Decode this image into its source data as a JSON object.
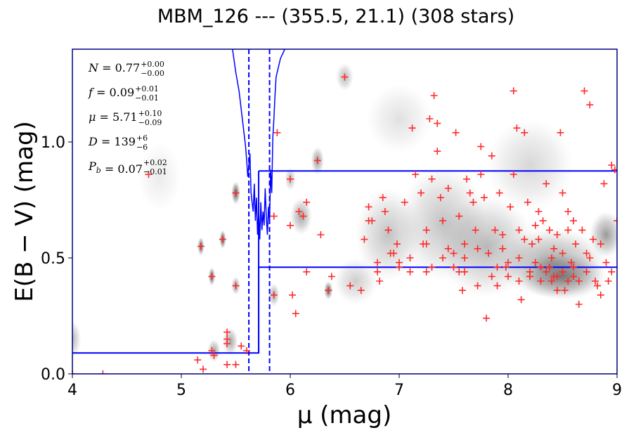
{
  "chart_data": {
    "type": "scatter",
    "title": "MBM_126 --- (355.5, 21.1) (308 stars)",
    "xlabel": "μ (mag)",
    "ylabel": "E(B − V) (mag)",
    "xlim": [
      4,
      9
    ],
    "ylim": [
      0,
      1.4
    ],
    "xticks": [
      "4",
      "5",
      "6",
      "7",
      "8",
      "9"
    ],
    "yticks": [
      "0.0",
      "0.5",
      "1.0"
    ],
    "xtick_values": [
      4,
      5,
      6,
      7,
      8,
      9
    ],
    "ytick_values": [
      0,
      0.5,
      1.0
    ],
    "annotations": [
      {
        "name": "N",
        "value": "0.77",
        "upper": "+0.00",
        "lower": "−0.00"
      },
      {
        "name": "f",
        "value": "0.09",
        "upper": "+0.01",
        "lower": "−0.01"
      },
      {
        "name": "μ",
        "value": "5.71",
        "upper": "+0.10",
        "lower": "−0.09"
      },
      {
        "name": "D",
        "value": "139",
        "upper": "+6",
        "lower": "−6"
      },
      {
        "name": "P_b",
        "value": "0.07",
        "upper": "+0.02",
        "lower": "−0.01"
      }
    ],
    "colors": {
      "stars": "#ff2a2a",
      "model": "#0000ff",
      "density": "#333333"
    },
    "model_step": {
      "x": [
        4,
        5.71,
        5.71,
        9
      ],
      "y": [
        0.09,
        0.09,
        0.46,
        0.46
      ]
    },
    "model_upper": {
      "x": [
        5.71,
        9
      ],
      "y": [
        0.875,
        0.875
      ]
    },
    "mu_bounds": [
      5.62,
      5.81
    ],
    "likelihood_curve": {
      "x": [
        5.47,
        5.5,
        5.53,
        5.56,
        5.59,
        5.6,
        5.61,
        5.63,
        5.64,
        5.66,
        5.67,
        5.68,
        5.69,
        5.7,
        5.71,
        5.72,
        5.73,
        5.74,
        5.75,
        5.76,
        5.77,
        5.78,
        5.79,
        5.8,
        5.81,
        5.82,
        5.83,
        5.84,
        5.85,
        5.86,
        5.87,
        5.89,
        5.91,
        5.93,
        5.95
      ],
      "y": [
        1.4,
        1.3,
        1.22,
        1.1,
        0.98,
        0.92,
        0.85,
        0.95,
        0.78,
        0.7,
        0.82,
        0.66,
        0.76,
        0.6,
        0.7,
        0.58,
        0.74,
        0.62,
        0.7,
        0.64,
        0.8,
        0.68,
        0.6,
        0.72,
        0.65,
        0.88,
        0.78,
        1.02,
        1.1,
        1.2,
        1.28,
        1.32,
        1.36,
        1.38,
        1.4
      ]
    },
    "series": [
      {
        "name": "stars",
        "points": [
          [
            4.0,
            0.0
          ],
          [
            4.28,
            0.0
          ],
          [
            4.7,
            0.86
          ],
          [
            5.18,
            0.55
          ],
          [
            5.15,
            0.06
          ],
          [
            5.2,
            0.02
          ],
          [
            5.28,
            0.42
          ],
          [
            5.28,
            0.1
          ],
          [
            5.3,
            0.08
          ],
          [
            5.38,
            0.58
          ],
          [
            5.42,
            0.18
          ],
          [
            5.42,
            0.15
          ],
          [
            5.42,
            0.13
          ],
          [
            5.42,
            0.04
          ],
          [
            5.5,
            0.38
          ],
          [
            5.5,
            0.04
          ],
          [
            5.5,
            0.78
          ],
          [
            5.55,
            0.12
          ],
          [
            5.6,
            0.1
          ],
          [
            5.85,
            0.68
          ],
          [
            5.85,
            0.34
          ],
          [
            5.88,
            1.04
          ],
          [
            6.0,
            0.84
          ],
          [
            6.0,
            0.64
          ],
          [
            6.02,
            0.34
          ],
          [
            6.05,
            0.26
          ],
          [
            6.08,
            0.7
          ],
          [
            6.12,
            0.68
          ],
          [
            6.15,
            0.74
          ],
          [
            6.15,
            0.44
          ],
          [
            6.25,
            0.92
          ],
          [
            6.28,
            0.6
          ],
          [
            6.35,
            0.36
          ],
          [
            6.38,
            0.42
          ],
          [
            6.5,
            1.28
          ],
          [
            6.55,
            0.38
          ],
          [
            6.65,
            0.36
          ],
          [
            6.68,
            0.58
          ],
          [
            6.72,
            0.72
          ],
          [
            6.72,
            0.66
          ],
          [
            6.75,
            0.66
          ],
          [
            6.8,
            0.48
          ],
          [
            6.8,
            0.44
          ],
          [
            6.82,
            0.4
          ],
          [
            6.85,
            0.76
          ],
          [
            6.87,
            0.7
          ],
          [
            6.9,
            0.62
          ],
          [
            6.92,
            0.52
          ],
          [
            6.95,
            0.52
          ],
          [
            7.0,
            0.48
          ],
          [
            7.0,
            0.46
          ],
          [
            7.05,
            0.74
          ],
          [
            7.1,
            0.5
          ],
          [
            7.12,
            1.06
          ],
          [
            7.15,
            0.86
          ],
          [
            7.2,
            0.78
          ],
          [
            7.22,
            0.56
          ],
          [
            7.25,
            0.62
          ],
          [
            7.25,
            0.56
          ],
          [
            7.25,
            0.44
          ],
          [
            7.28,
            1.1
          ],
          [
            7.3,
            0.84
          ],
          [
            7.32,
            1.2
          ],
          [
            7.35,
            1.08
          ],
          [
            7.35,
            0.96
          ],
          [
            7.38,
            0.76
          ],
          [
            7.4,
            0.66
          ],
          [
            7.4,
            0.5
          ],
          [
            7.45,
            0.8
          ],
          [
            7.5,
            0.52
          ],
          [
            7.5,
            0.46
          ],
          [
            7.52,
            1.04
          ],
          [
            7.55,
            0.68
          ],
          [
            7.55,
            0.44
          ],
          [
            7.58,
            0.36
          ],
          [
            7.6,
            0.56
          ],
          [
            7.6,
            0.44
          ],
          [
            7.62,
            0.84
          ],
          [
            7.65,
            0.78
          ],
          [
            7.68,
            0.74
          ],
          [
            7.7,
            0.62
          ],
          [
            7.72,
            0.54
          ],
          [
            7.72,
            0.38
          ],
          [
            7.75,
            0.98
          ],
          [
            7.75,
            0.86
          ],
          [
            7.78,
            0.76
          ],
          [
            7.8,
            0.24
          ],
          [
            7.82,
            0.52
          ],
          [
            7.85,
            0.94
          ],
          [
            7.85,
            0.42
          ],
          [
            7.88,
            0.62
          ],
          [
            7.9,
            0.38
          ],
          [
            7.92,
            0.78
          ],
          [
            7.95,
            0.54
          ],
          [
            7.98,
            0.46
          ],
          [
            8.0,
            0.48
          ],
          [
            8.02,
            0.72
          ],
          [
            8.05,
            1.22
          ],
          [
            8.05,
            0.86
          ],
          [
            8.08,
            1.06
          ],
          [
            8.1,
            0.62
          ],
          [
            8.1,
            0.5
          ],
          [
            8.12,
            0.32
          ],
          [
            8.15,
            1.04
          ],
          [
            8.18,
            0.74
          ],
          [
            8.2,
            0.42
          ],
          [
            8.22,
            0.56
          ],
          [
            8.25,
            0.64
          ],
          [
            8.28,
            0.58
          ],
          [
            8.3,
            0.46
          ],
          [
            8.32,
            0.66
          ],
          [
            8.35,
            0.82
          ],
          [
            8.38,
            0.62
          ],
          [
            8.4,
            0.5
          ],
          [
            8.42,
            0.42
          ],
          [
            8.45,
            0.6
          ],
          [
            8.48,
            1.04
          ],
          [
            8.5,
            0.78
          ],
          [
            8.5,
            0.52
          ],
          [
            8.52,
            0.36
          ],
          [
            8.55,
            0.7
          ],
          [
            8.58,
            0.48
          ],
          [
            8.6,
            0.42
          ],
          [
            8.62,
            0.56
          ],
          [
            8.65,
            0.3
          ],
          [
            8.68,
            0.62
          ],
          [
            8.7,
            1.22
          ],
          [
            8.72,
            0.52
          ],
          [
            8.72,
            0.44
          ],
          [
            8.75,
            1.16
          ],
          [
            8.78,
            0.58
          ],
          [
            8.8,
            0.4
          ],
          [
            8.82,
            0.38
          ],
          [
            8.85,
            0.56
          ],
          [
            8.85,
            0.34
          ],
          [
            8.88,
            0.82
          ],
          [
            8.9,
            0.48
          ],
          [
            8.92,
            0.4
          ],
          [
            8.95,
            0.9
          ],
          [
            8.98,
            0.88
          ],
          [
            9.0,
            0.66
          ],
          [
            8.0,
            0.42
          ],
          [
            8.1,
            0.4
          ],
          [
            8.2,
            0.44
          ],
          [
            8.3,
            0.4
          ],
          [
            8.35,
            0.44
          ],
          [
            8.4,
            0.4
          ],
          [
            8.45,
            0.42
          ],
          [
            8.5,
            0.44
          ],
          [
            8.55,
            0.4
          ],
          [
            8.6,
            0.46
          ],
          [
            8.65,
            0.4
          ],
          [
            8.25,
            0.48
          ],
          [
            8.45,
            0.36
          ],
          [
            8.38,
            0.46
          ],
          [
            7.9,
            0.46
          ],
          [
            7.6,
            0.5
          ],
          [
            7.3,
            0.46
          ],
          [
            8.15,
            0.58
          ],
          [
            8.75,
            0.5
          ],
          [
            8.95,
            0.44
          ],
          [
            8.55,
            0.62
          ],
          [
            8.28,
            0.7
          ],
          [
            8.6,
            0.66
          ],
          [
            7.95,
            0.6
          ],
          [
            7.1,
            0.44
          ],
          [
            6.98,
            0.56
          ],
          [
            7.45,
            0.54
          ],
          [
            8.42,
            0.54
          ]
        ]
      }
    ],
    "density_blobs": [
      [
        4.0,
        0.15,
        0.08,
        0.08,
        0.35
      ],
      [
        5.18,
        0.55,
        0.03,
        0.04,
        0.8
      ],
      [
        5.28,
        0.42,
        0.03,
        0.04,
        0.8
      ],
      [
        5.38,
        0.58,
        0.03,
        0.04,
        0.85
      ],
      [
        5.5,
        0.78,
        0.04,
        0.05,
        0.8
      ],
      [
        5.5,
        0.38,
        0.04,
        0.04,
        0.5
      ],
      [
        5.3,
        0.1,
        0.06,
        0.05,
        0.45
      ],
      [
        5.45,
        0.14,
        0.07,
        0.06,
        0.45
      ],
      [
        5.85,
        0.34,
        0.05,
        0.05,
        0.45
      ],
      [
        6.25,
        0.92,
        0.06,
        0.06,
        0.5
      ],
      [
        6.35,
        0.36,
        0.04,
        0.04,
        0.75
      ],
      [
        6.5,
        1.28,
        0.08,
        0.06,
        0.35
      ],
      [
        6.1,
        0.68,
        0.1,
        0.08,
        0.45
      ],
      [
        6.0,
        0.84,
        0.05,
        0.05,
        0.35
      ],
      [
        6.9,
        0.6,
        0.3,
        0.2,
        0.3
      ],
      [
        7.4,
        0.65,
        0.4,
        0.25,
        0.3
      ],
      [
        7.8,
        0.55,
        0.45,
        0.22,
        0.35
      ],
      [
        8.4,
        0.48,
        0.5,
        0.15,
        0.45
      ],
      [
        8.5,
        0.42,
        0.4,
        0.1,
        0.55
      ],
      [
        8.9,
        0.6,
        0.15,
        0.1,
        0.5
      ],
      [
        8.2,
        0.9,
        0.4,
        0.2,
        0.2
      ],
      [
        6.6,
        0.4,
        0.2,
        0.1,
        0.25
      ],
      [
        7.0,
        1.1,
        0.3,
        0.15,
        0.15
      ],
      [
        4.8,
        0.85,
        0.2,
        0.15,
        0.1
      ]
    ]
  }
}
